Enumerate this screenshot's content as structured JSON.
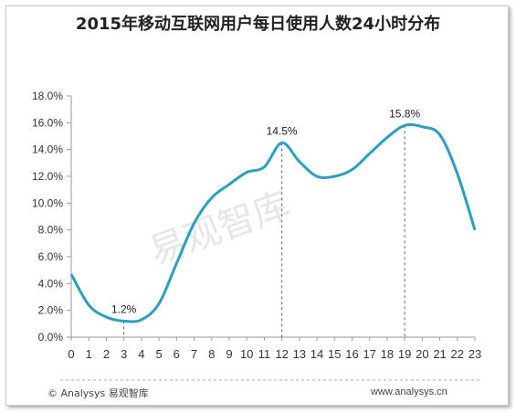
{
  "chart_data": {
    "type": "line",
    "title": "2015年移动互联网用户每日使用人数24小时分布",
    "x": [
      0,
      1,
      2,
      3,
      4,
      5,
      6,
      7,
      8,
      9,
      10,
      11,
      12,
      13,
      14,
      15,
      16,
      17,
      18,
      19,
      20,
      21,
      22,
      23
    ],
    "series": [
      {
        "values": [
          4.7,
          2.4,
          1.5,
          1.2,
          1.3,
          2.5,
          5.5,
          8.5,
          10.4,
          11.4,
          12.3,
          12.7,
          14.5,
          13.1,
          12.0,
          12.0,
          12.5,
          13.7,
          14.9,
          15.8,
          15.7,
          15.1,
          12.2,
          8.0
        ]
      }
    ],
    "ylim": [
      0,
      18
    ],
    "yticks": [
      "0.0%",
      "2.0%",
      "4.0%",
      "6.0%",
      "8.0%",
      "10.0%",
      "12.0%",
      "14.0%",
      "16.0%",
      "18.0%"
    ],
    "annotations": [
      {
        "x": 3,
        "label": "1.2%"
      },
      {
        "x": 12,
        "label": "14.5%"
      },
      {
        "x": 19,
        "label": "15.8%"
      }
    ],
    "line_color": "#2a9fc2",
    "grid": false
  },
  "footer": {
    "copyright": "© Analysys 易观智库",
    "website": "www.analysys.cn"
  },
  "watermark": "易观智库"
}
